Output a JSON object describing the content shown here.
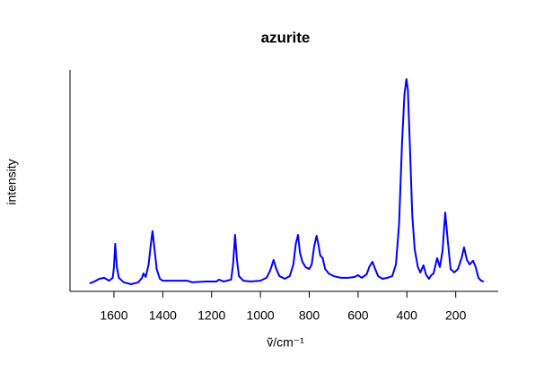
{
  "chart_data": {
    "type": "line",
    "title": "azurite",
    "x_label": "ṽ/cm⁻¹",
    "y_label": "intensity",
    "x": [
      1700,
      1680,
      1660,
      1640,
      1620,
      1605,
      1600,
      1595,
      1588,
      1580,
      1560,
      1530,
      1500,
      1485,
      1479,
      1470,
      1458,
      1448,
      1442,
      1435,
      1425,
      1412,
      1400,
      1350,
      1300,
      1280,
      1220,
      1180,
      1170,
      1150,
      1120,
      1112,
      1104,
      1096,
      1088,
      1070,
      1040,
      1000,
      975,
      960,
      946,
      935,
      922,
      900,
      880,
      865,
      855,
      846,
      838,
      828,
      815,
      800,
      790,
      780,
      770,
      763,
      755,
      745,
      735,
      720,
      700,
      670,
      640,
      615,
      600,
      585,
      565,
      553,
      541,
      530,
      518,
      500,
      480,
      460,
      445,
      432,
      420,
      410,
      402,
      396,
      388,
      378,
      368,
      355,
      345,
      332,
      322,
      310,
      300,
      291,
      276,
      265,
      254,
      243,
      232,
      221,
      206,
      191,
      176,
      166,
      154,
      143,
      129,
      118,
      107,
      96,
      85
    ],
    "values": [
      0.004,
      0.013,
      0.026,
      0.031,
      0.017,
      0.031,
      0.083,
      0.197,
      0.083,
      0.031,
      0.009,
      0.0,
      0.009,
      0.031,
      0.052,
      0.035,
      0.096,
      0.205,
      0.258,
      0.183,
      0.074,
      0.026,
      0.017,
      0.017,
      0.017,
      0.009,
      0.013,
      0.013,
      0.022,
      0.013,
      0.022,
      0.096,
      0.24,
      0.118,
      0.039,
      0.017,
      0.013,
      0.017,
      0.031,
      0.066,
      0.118,
      0.074,
      0.039,
      0.026,
      0.039,
      0.096,
      0.197,
      0.24,
      0.153,
      0.109,
      0.083,
      0.074,
      0.096,
      0.183,
      0.236,
      0.197,
      0.14,
      0.127,
      0.074,
      0.052,
      0.039,
      0.031,
      0.031,
      0.035,
      0.044,
      0.031,
      0.048,
      0.087,
      0.109,
      0.074,
      0.039,
      0.026,
      0.031,
      0.039,
      0.096,
      0.293,
      0.686,
      0.926,
      1.0,
      0.948,
      0.686,
      0.336,
      0.17,
      0.083,
      0.057,
      0.092,
      0.048,
      0.026,
      0.044,
      0.052,
      0.127,
      0.083,
      0.162,
      0.349,
      0.205,
      0.074,
      0.057,
      0.074,
      0.127,
      0.179,
      0.118,
      0.096,
      0.114,
      0.083,
      0.031,
      0.017,
      0.013
    ],
    "color": "#0000ff",
    "xlim": [
      1780,
      26
    ],
    "xticks": [
      1600,
      1400,
      1200,
      1000,
      800,
      600,
      400,
      200
    ],
    "ylim": [
      -0.035,
      1.044
    ]
  }
}
